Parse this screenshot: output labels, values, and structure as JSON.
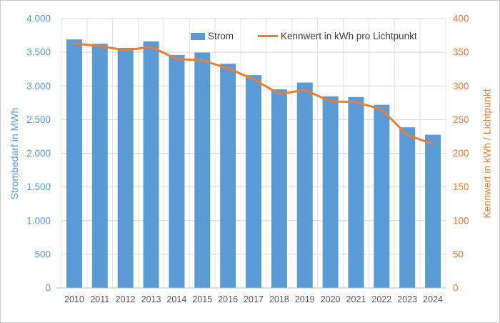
{
  "colors": {
    "bar": "#5B9BD5",
    "line": "#ED7D31",
    "left_axis_text": "#5B9BD5",
    "right_axis_text": "#ED7D31",
    "x_axis_text": "#595959",
    "legend_text": "#404040",
    "gridline": "#D9D9D9",
    "vertical_gridline": "#E4E4E4",
    "axis_line": "#BFBFBF"
  },
  "legend": {
    "items": [
      {
        "label": "Strom",
        "swatch": "bar-swatch"
      },
      {
        "label": "Kennwert in kWh pro Lichtpunkt",
        "swatch": "line-swatch"
      }
    ]
  },
  "chart_data": {
    "type": "bar+line combo",
    "categories": [
      "2010",
      "2011",
      "2012",
      "2013",
      "2014",
      "2015",
      "2016",
      "2017",
      "2018",
      "2019",
      "2020",
      "2021",
      "2022",
      "2023",
      "2024"
    ],
    "series": [
      {
        "name": "Strom",
        "type": "bar",
        "axis": "left",
        "color": "#5B9BD5",
        "values": [
          3690,
          3625,
          3565,
          3660,
          3460,
          3495,
          3330,
          3160,
          2950,
          3050,
          2845,
          2835,
          2720,
          2385,
          2275
        ]
      },
      {
        "name": "Kennwert in kWh pro Lichtpunkt",
        "type": "line",
        "axis": "right",
        "color": "#ED7D31",
        "values": [
          363,
          359,
          353,
          358,
          340,
          338,
          326,
          310,
          288,
          294,
          277,
          276,
          265,
          227,
          214
        ]
      }
    ],
    "left_axis": {
      "title": "Strombedarf in MWh",
      "min": 0,
      "max": 4000,
      "step": 500,
      "tick_labels": [
        "0",
        "500",
        "1.000",
        "1.500",
        "2.000",
        "2.500",
        "3.000",
        "3.500",
        "4.000"
      ]
    },
    "right_axis": {
      "title": "Kennwert in kWh / Lichtpunkt",
      "min": 0,
      "max": 400,
      "step": 50,
      "tick_labels": [
        "0",
        "50",
        "100",
        "150",
        "200",
        "250",
        "300",
        "350",
        "400"
      ]
    },
    "grid": true,
    "legend_position": "top"
  }
}
